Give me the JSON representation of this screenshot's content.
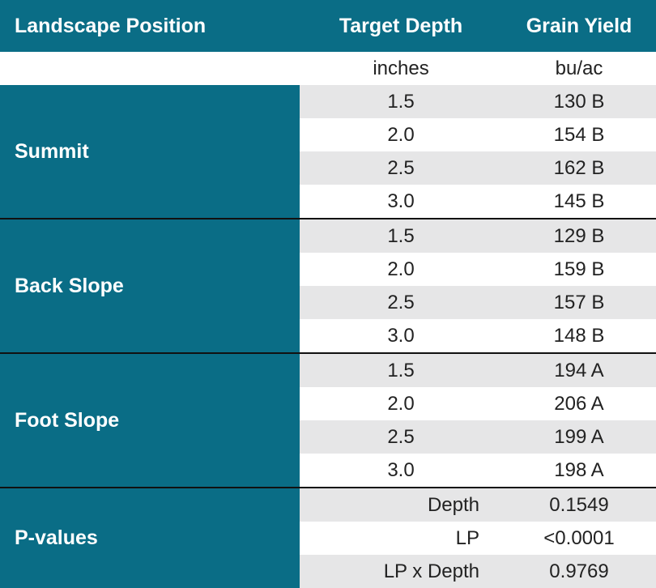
{
  "headers": {
    "landscape_position": "Landscape Position",
    "target_depth": "Target Depth",
    "grain_yield": "Grain Yield"
  },
  "units": {
    "depth": "inches",
    "yield": "bu/ac"
  },
  "groups": [
    {
      "label": "Summit",
      "rows": [
        {
          "depth": "1.5",
          "yield": "130 B"
        },
        {
          "depth": "2.0",
          "yield": "154 B"
        },
        {
          "depth": "2.5",
          "yield": "162 B"
        },
        {
          "depth": "3.0",
          "yield": "145 B"
        }
      ]
    },
    {
      "label": "Back Slope",
      "rows": [
        {
          "depth": "1.5",
          "yield": "129 B"
        },
        {
          "depth": "2.0",
          "yield": "159 B"
        },
        {
          "depth": "2.5",
          "yield": "157 B"
        },
        {
          "depth": "3.0",
          "yield": "148 B"
        }
      ]
    },
    {
      "label": "Foot Slope",
      "rows": [
        {
          "depth": "1.5",
          "yield": "194 A"
        },
        {
          "depth": "2.0",
          "yield": "206 A"
        },
        {
          "depth": "2.5",
          "yield": "199 A"
        },
        {
          "depth": "3.0",
          "yield": "198 A"
        }
      ]
    }
  ],
  "pvalues": {
    "label": "P-values",
    "rows": [
      {
        "term": "Depth",
        "value": "0.1549"
      },
      {
        "term": "LP",
        "value": "<0.0001"
      },
      {
        "term": "LP x Depth",
        "value": "0.9769"
      }
    ]
  }
}
